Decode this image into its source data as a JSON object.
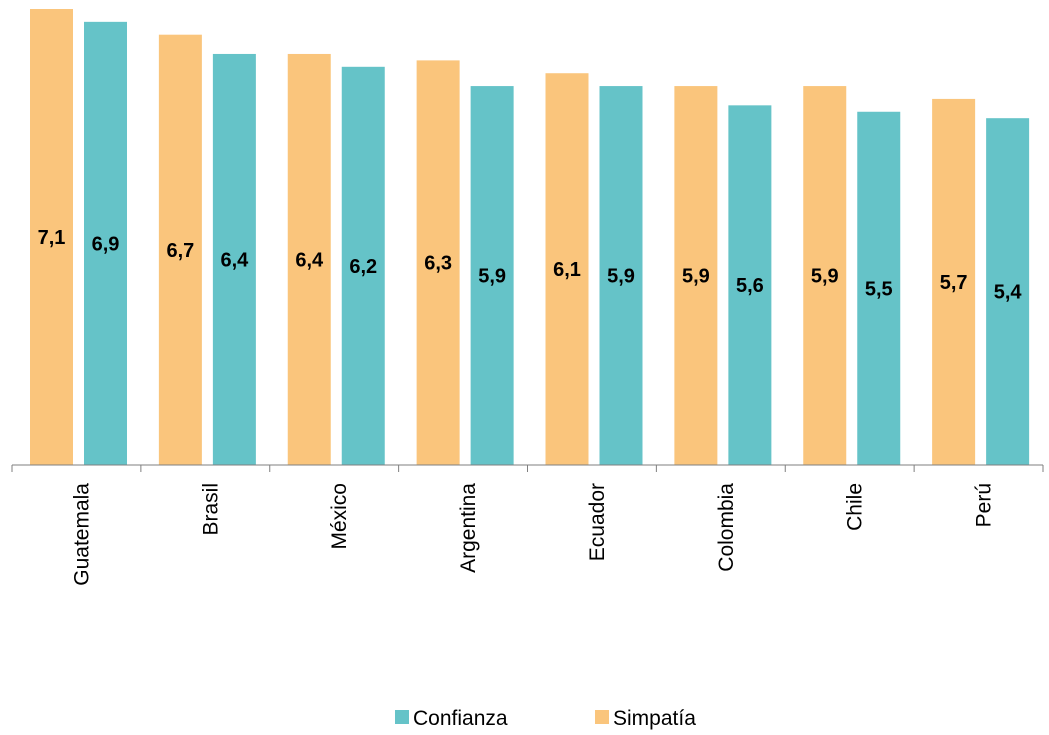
{
  "chart_data": {
    "type": "bar",
    "categories": [
      "Guatemala",
      "Brasil",
      "México",
      "Argentina",
      "Ecuador",
      "Colombia",
      "Chile",
      "Perú"
    ],
    "series": [
      {
        "name": "Simpatía",
        "color": "#FAC57C",
        "values": [
          7.1,
          6.7,
          6.4,
          6.3,
          6.1,
          5.9,
          5.9,
          5.7
        ],
        "labels": [
          "7,1",
          "6,7",
          "6,4",
          "6,3",
          "6,1",
          "5,9",
          "5,9",
          "5,7"
        ]
      },
      {
        "name": "Confianza",
        "color": "#65C3C8",
        "values": [
          6.9,
          6.4,
          6.2,
          5.9,
          5.9,
          5.6,
          5.5,
          5.4
        ],
        "labels": [
          "6,9",
          "6,4",
          "6,2",
          "5,9",
          "5,9",
          "5,6",
          "5,5",
          "5,4"
        ]
      }
    ],
    "legend": {
      "placement": "bottom",
      "order": [
        "Confianza",
        "Simpatía"
      ]
    },
    "grid": false,
    "ylim": [
      0,
      7.4
    ]
  }
}
